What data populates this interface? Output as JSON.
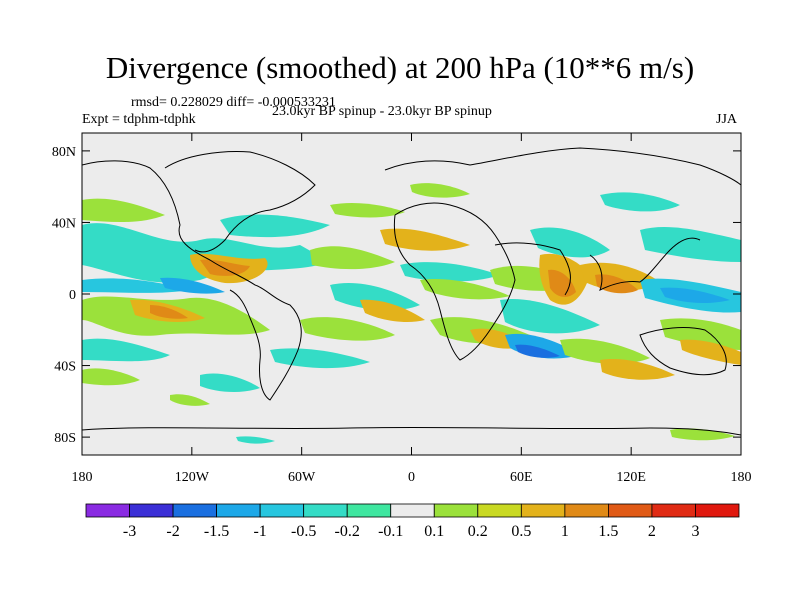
{
  "title": "Divergence (smoothed) at 200 hPa (10**6 m/s)",
  "stats": "rmsd= 0.228029 diff= -0.000533231",
  "experiment": "Expt = tdphm-tdphk",
  "case": "23.0kyr BP spinup - 23.0kyr BP spinup",
  "season": "JJA",
  "axes": {
    "y_ticks": [
      "80N",
      "40N",
      "0",
      "40S",
      "80S"
    ],
    "y_values": [
      80,
      40,
      0,
      -40,
      -80
    ],
    "x_ticks": [
      "180",
      "120W",
      "60W",
      "0",
      "60E",
      "120E",
      "180"
    ],
    "x_values": [
      -180,
      -120,
      -60,
      0,
      60,
      120,
      180
    ],
    "lat_range": [
      -90,
      90
    ],
    "lon_range": [
      -180,
      180
    ]
  },
  "colorbar": {
    "labels": [
      "-3",
      "-2",
      "-1.5",
      "-1",
      "-0.5",
      "-0.2",
      "-0.1",
      "0.1",
      "0.2",
      "0.5",
      "1",
      "1.5",
      "2",
      "3"
    ],
    "colors": [
      "#8a2be2",
      "#3b2fd6",
      "#1a6fe0",
      "#1da8e8",
      "#27c6df",
      "#34dcc6",
      "#3fe6a0",
      "#ececec",
      "#9be13b",
      "#c9d923",
      "#e3b21b",
      "#e08a17",
      "#e05a16",
      "#e02b14",
      "#e0180e"
    ]
  },
  "colors": {
    "ocean_background": "#ececec",
    "coastline": "#000000"
  }
}
